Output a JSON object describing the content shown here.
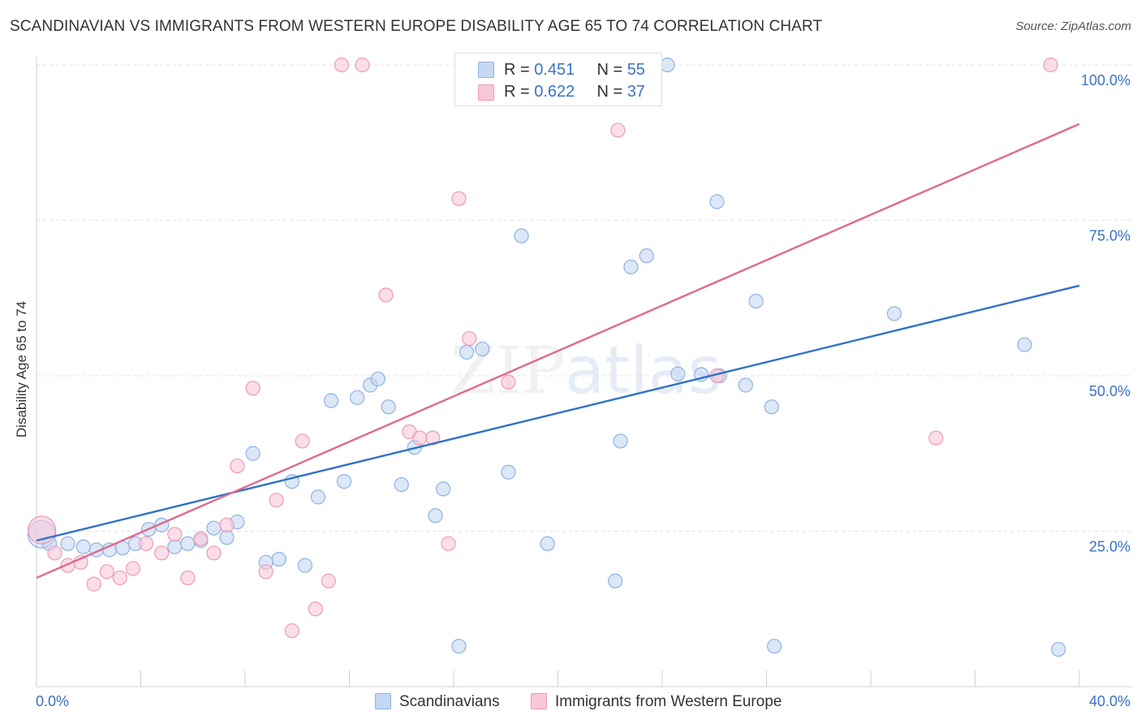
{
  "header": {
    "title": "SCANDINAVIAN VS IMMIGRANTS FROM WESTERN EUROPE DISABILITY AGE 65 TO 74 CORRELATION CHART",
    "source": "Source: ZipAtlas.com"
  },
  "watermark": {
    "zip": "ZIP",
    "atlas": "atlas"
  },
  "legend_top": {
    "rows": [
      {
        "r_label": "R = ",
        "r_value": "0.451",
        "n_label": "N = ",
        "n_value": "55"
      },
      {
        "r_label": "R = ",
        "r_value": "0.622",
        "n_label": "N = ",
        "n_value": "37"
      }
    ]
  },
  "colors": {
    "blue_fill": "#c5d8f2",
    "blue_stroke": "#8fb1e3",
    "blue_line": "#2f72c9",
    "pink_fill": "#f8c8d8",
    "pink_stroke": "#ee9ab5",
    "pink_line": "#e06890",
    "tick_label": "#3a72c4",
    "grid": "#e2e2e2"
  },
  "chart_data": {
    "type": "scatter",
    "title": "SCANDINAVIAN VS IMMIGRANTS FROM WESTERN EUROPE DISABILITY AGE 65 TO 74 CORRELATION CHART",
    "xlabel": "",
    "ylabel": "Disability Age 65 to 74",
    "xlim": [
      0,
      40
    ],
    "ylim": [
      0,
      103
    ],
    "x_tick_labels": [
      "0.0%",
      "40.0%"
    ],
    "y_ticks": [
      25,
      50,
      75,
      100
    ],
    "y_tick_labels": [
      "25.0%",
      "50.0%",
      "75.0%",
      "100.0%"
    ],
    "grid": true,
    "legend_position": "bottom",
    "series": [
      {
        "name": "Scandinavians",
        "color": "#8fb1e3",
        "trend": {
          "x": [
            0,
            40
          ],
          "y": [
            23.5,
            64.5
          ]
        },
        "points": [
          {
            "x": 0.2,
            "y": 24.5,
            "big": true
          },
          {
            "x": 0.5,
            "y": 23
          },
          {
            "x": 1.2,
            "y": 23
          },
          {
            "x": 1.8,
            "y": 22.5
          },
          {
            "x": 2.3,
            "y": 22
          },
          {
            "x": 2.8,
            "y": 22
          },
          {
            "x": 3.3,
            "y": 22.3
          },
          {
            "x": 3.8,
            "y": 23
          },
          {
            "x": 4.3,
            "y": 25.3
          },
          {
            "x": 4.8,
            "y": 26
          },
          {
            "x": 5.3,
            "y": 22.5
          },
          {
            "x": 5.8,
            "y": 23
          },
          {
            "x": 6.3,
            "y": 23.5
          },
          {
            "x": 6.8,
            "y": 25.5
          },
          {
            "x": 7.3,
            "y": 24
          },
          {
            "x": 7.7,
            "y": 26.5
          },
          {
            "x": 8.3,
            "y": 37.5
          },
          {
            "x": 8.8,
            "y": 20
          },
          {
            "x": 9.3,
            "y": 20.5
          },
          {
            "x": 9.8,
            "y": 33
          },
          {
            "x": 10.3,
            "y": 19.5
          },
          {
            "x": 10.8,
            "y": 30.5
          },
          {
            "x": 11.3,
            "y": 46
          },
          {
            "x": 11.8,
            "y": 33
          },
          {
            "x": 12.3,
            "y": 46.5
          },
          {
            "x": 12.8,
            "y": 48.5
          },
          {
            "x": 13.1,
            "y": 49.5
          },
          {
            "x": 13.5,
            "y": 45
          },
          {
            "x": 14.0,
            "y": 32.5
          },
          {
            "x": 14.5,
            "y": 38.5
          },
          {
            "x": 15.3,
            "y": 27.5
          },
          {
            "x": 15.6,
            "y": 31.8
          },
          {
            "x": 16.2,
            "y": 6.5
          },
          {
            "x": 16.5,
            "y": 53.8
          },
          {
            "x": 17.1,
            "y": 54.3
          },
          {
            "x": 18.1,
            "y": 34.5
          },
          {
            "x": 18.6,
            "y": 72.5
          },
          {
            "x": 19.6,
            "y": 23
          },
          {
            "x": 21.3,
            "y": 100
          },
          {
            "x": 22.2,
            "y": 17
          },
          {
            "x": 22.4,
            "y": 39.5
          },
          {
            "x": 22.8,
            "y": 67.5
          },
          {
            "x": 23.4,
            "y": 69.3
          },
          {
            "x": 24.2,
            "y": 100
          },
          {
            "x": 24.6,
            "y": 50.3
          },
          {
            "x": 25.5,
            "y": 50.2
          },
          {
            "x": 26.1,
            "y": 78
          },
          {
            "x": 26.2,
            "y": 50
          },
          {
            "x": 27.2,
            "y": 48.5
          },
          {
            "x": 27.6,
            "y": 62
          },
          {
            "x": 28.2,
            "y": 45
          },
          {
            "x": 28.3,
            "y": 6.5
          },
          {
            "x": 32.9,
            "y": 60
          },
          {
            "x": 37.9,
            "y": 55
          },
          {
            "x": 39.2,
            "y": 6
          }
        ]
      },
      {
        "name": "Immigrants from Western Europe",
        "color": "#ee9ab5",
        "trend": {
          "x": [
            0,
            40
          ],
          "y": [
            17.5,
            90.5
          ]
        },
        "points": [
          {
            "x": 0.2,
            "y": 25.2,
            "big": true
          },
          {
            "x": 0.7,
            "y": 21.5
          },
          {
            "x": 1.2,
            "y": 19.5
          },
          {
            "x": 1.7,
            "y": 20
          },
          {
            "x": 2.2,
            "y": 16.5
          },
          {
            "x": 2.7,
            "y": 18.5
          },
          {
            "x": 3.2,
            "y": 17.5
          },
          {
            "x": 3.7,
            "y": 19
          },
          {
            "x": 4.2,
            "y": 23
          },
          {
            "x": 4.8,
            "y": 21.5
          },
          {
            "x": 5.3,
            "y": 24.5
          },
          {
            "x": 5.8,
            "y": 17.5
          },
          {
            "x": 6.3,
            "y": 23.8
          },
          {
            "x": 6.8,
            "y": 21.5
          },
          {
            "x": 7.3,
            "y": 26
          },
          {
            "x": 7.7,
            "y": 35.5
          },
          {
            "x": 8.3,
            "y": 48
          },
          {
            "x": 8.8,
            "y": 18.5
          },
          {
            "x": 9.2,
            "y": 30
          },
          {
            "x": 9.8,
            "y": 9
          },
          {
            "x": 10.2,
            "y": 39.5
          },
          {
            "x": 10.7,
            "y": 12.5
          },
          {
            "x": 11.2,
            "y": 17
          },
          {
            "x": 11.7,
            "y": 100
          },
          {
            "x": 12.5,
            "y": 100
          },
          {
            "x": 13.4,
            "y": 63
          },
          {
            "x": 14.3,
            "y": 41
          },
          {
            "x": 14.7,
            "y": 40
          },
          {
            "x": 15.2,
            "y": 40
          },
          {
            "x": 15.8,
            "y": 23
          },
          {
            "x": 16.2,
            "y": 78.5
          },
          {
            "x": 16.6,
            "y": 56
          },
          {
            "x": 18.1,
            "y": 49
          },
          {
            "x": 22.3,
            "y": 89.5
          },
          {
            "x": 26.1,
            "y": 50
          },
          {
            "x": 34.5,
            "y": 40
          },
          {
            "x": 38.9,
            "y": 100
          }
        ]
      }
    ]
  },
  "legend_bottom": {
    "items": [
      {
        "label": "Scandinavians"
      },
      {
        "label": "Immigrants from Western Europe"
      }
    ]
  }
}
